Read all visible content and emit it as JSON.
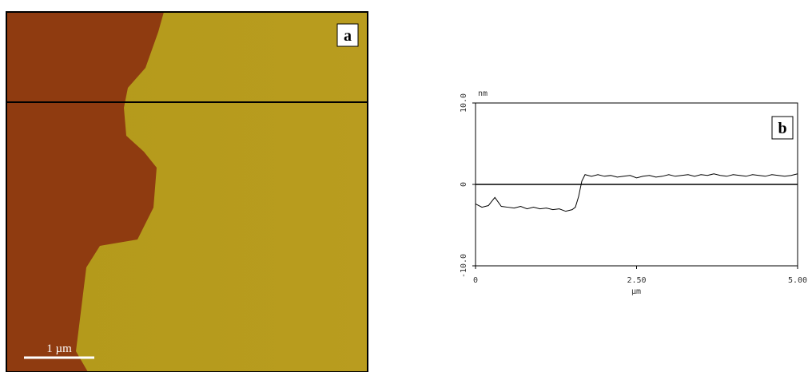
{
  "panel_a": {
    "label": "a",
    "scale_bar": "1 µm"
  },
  "chart_data": {
    "type": "line",
    "panel_label": "b",
    "y_unit": "nm",
    "x_label": "µm",
    "x": [
      0,
      0.1,
      0.2,
      0.3,
      0.4,
      0.5,
      0.6,
      0.7,
      0.8,
      0.9,
      1.0,
      1.1,
      1.2,
      1.3,
      1.4,
      1.5,
      1.55,
      1.6,
      1.65,
      1.7,
      1.8,
      1.9,
      2.0,
      2.1,
      2.2,
      2.3,
      2.4,
      2.5,
      2.6,
      2.7,
      2.8,
      2.9,
      3.0,
      3.1,
      3.2,
      3.3,
      3.4,
      3.5,
      3.6,
      3.7,
      3.8,
      3.9,
      4.0,
      4.1,
      4.2,
      4.3,
      4.4,
      4.5,
      4.6,
      4.7,
      4.8,
      4.9,
      5.0
    ],
    "series": [
      {
        "color": "#000000",
        "values": [
          -2.4,
          -2.8,
          -2.6,
          -1.6,
          -2.7,
          -2.8,
          -2.9,
          -2.7,
          -3.0,
          -2.8,
          -3.0,
          -2.9,
          -3.1,
          -3.0,
          -3.3,
          -3.1,
          -2.8,
          -1.5,
          0.4,
          1.2,
          1.0,
          1.2,
          1.0,
          1.1,
          0.9,
          1.0,
          1.1,
          0.8,
          1.0,
          1.1,
          0.9,
          1.0,
          1.2,
          1.0,
          1.1,
          1.2,
          1.0,
          1.2,
          1.1,
          1.3,
          1.1,
          1.0,
          1.2,
          1.1,
          1.0,
          1.2,
          1.1,
          1.0,
          1.2,
          1.1,
          1.0,
          1.1,
          1.3
        ]
      }
    ],
    "xlim": [
      0,
      5
    ],
    "xticks": [
      0,
      {
        "value": 2.5,
        "label": "2.50"
      },
      {
        "value": 5,
        "label": "5.00"
      }
    ],
    "ylim": [
      -10,
      10
    ],
    "yticks": [
      {
        "value": -10,
        "label": "-10.0"
      },
      0,
      {
        "value": 10,
        "label": "10.0"
      }
    ]
  }
}
